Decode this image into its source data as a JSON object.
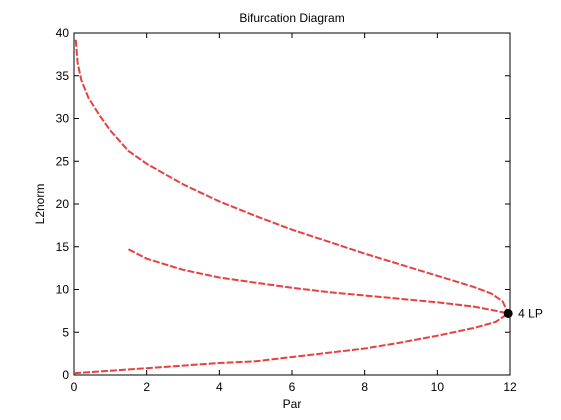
{
  "chart_data": {
    "type": "line",
    "title": "Bifurcation Diagram",
    "xlabel": "Par",
    "ylabel": "L2norm",
    "xlim": [
      0,
      12
    ],
    "ylim": [
      0,
      40
    ],
    "xticks": [
      0,
      2,
      4,
      6,
      8,
      10,
      12
    ],
    "yticks": [
      0,
      5,
      10,
      15,
      20,
      25,
      30,
      35,
      40
    ],
    "grid": false,
    "line_color": "#e84040",
    "line_style": "dashed",
    "series": [
      {
        "points": [
          [
            0.05,
            39.2
          ],
          [
            0.1,
            36.5
          ],
          [
            0.2,
            34.5
          ],
          [
            0.4,
            32.4
          ],
          [
            0.7,
            30.4
          ],
          [
            1.0,
            28.6
          ],
          [
            1.5,
            26.2
          ],
          [
            2.0,
            24.7
          ],
          [
            3.0,
            22.3
          ],
          [
            4.0,
            20.3
          ],
          [
            5.0,
            18.6
          ],
          [
            6.0,
            17.0
          ],
          [
            7.0,
            15.6
          ],
          [
            8.0,
            14.2
          ],
          [
            9.0,
            12.9
          ],
          [
            10.0,
            11.6
          ],
          [
            11.0,
            10.3
          ],
          [
            11.5,
            9.5
          ],
          [
            11.8,
            8.6
          ],
          [
            11.95,
            7.2
          ]
        ]
      },
      {
        "points": [
          [
            1.5,
            14.7
          ],
          [
            2.0,
            13.6
          ],
          [
            3.0,
            12.3
          ],
          [
            4.0,
            11.4
          ],
          [
            5.0,
            10.8
          ],
          [
            6.0,
            10.2
          ],
          [
            7.0,
            9.7
          ],
          [
            8.0,
            9.3
          ],
          [
            9.0,
            8.9
          ],
          [
            10.0,
            8.5
          ],
          [
            11.0,
            8.0
          ],
          [
            11.5,
            7.6
          ],
          [
            11.95,
            7.2
          ]
        ]
      },
      {
        "points": [
          [
            0.0,
            0.2
          ],
          [
            1.0,
            0.5
          ],
          [
            2.0,
            0.8
          ],
          [
            3.0,
            1.1
          ],
          [
            4.0,
            1.4
          ],
          [
            5.0,
            1.6
          ],
          [
            6.0,
            2.1
          ],
          [
            7.0,
            2.6
          ],
          [
            8.0,
            3.1
          ],
          [
            9.0,
            3.8
          ],
          [
            10.0,
            4.6
          ],
          [
            11.0,
            5.5
          ],
          [
            11.6,
            6.2
          ],
          [
            11.95,
            7.2
          ]
        ]
      }
    ],
    "annotations": [
      {
        "x": 11.95,
        "y": 7.2,
        "marker": "filled-circle",
        "text": "4  LP"
      }
    ]
  }
}
